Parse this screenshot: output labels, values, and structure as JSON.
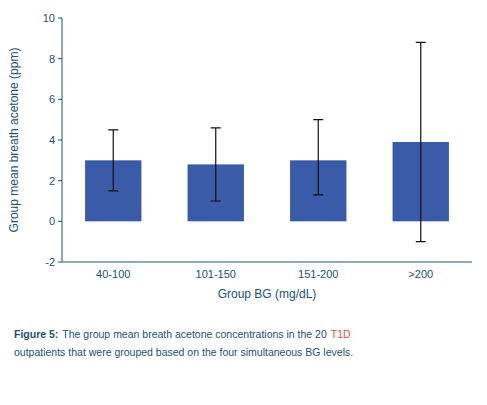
{
  "chart_data": {
    "type": "bar",
    "xlabel": "Group BG (mg/dL)",
    "ylabel": "Group mean breath acetone (ppm)",
    "categories": [
      "40-100",
      "101-150",
      "151-200",
      ">200"
    ],
    "values": [
      3.0,
      2.8,
      3.0,
      3.9
    ],
    "error_upper": [
      1.5,
      1.8,
      2.0,
      4.9
    ],
    "error_lower": [
      1.5,
      1.8,
      1.7,
      4.9
    ],
    "color": "#3A5CA8",
    "ylim": [
      -2,
      10
    ],
    "yticks": [
      -2,
      0,
      2,
      4,
      6,
      8,
      10
    ],
    "grid": false,
    "annotations": [
      {
        "text": "Figure 5:"
      },
      {
        "text": "The group mean breath acetone concentrations in the 20"
      },
      {
        "text": "T1D",
        "color": "#e74c3c"
      },
      {
        "text": "outpatients that were grouped based on the four simultaneous BG levels."
      }
    ]
  }
}
